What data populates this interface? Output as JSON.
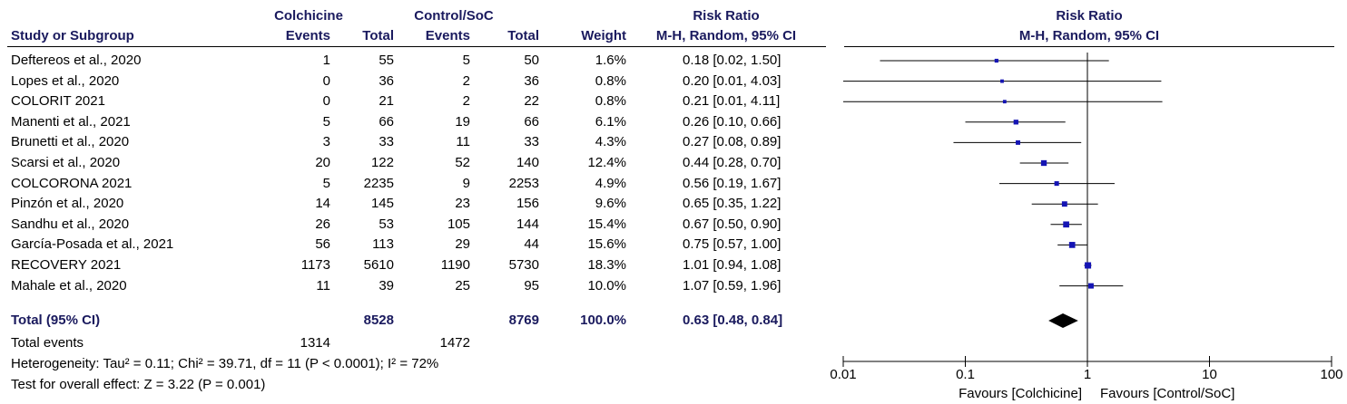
{
  "header": {
    "group1": "Colchicine",
    "group2": "Control/SoC",
    "rr_title": "Risk Ratio",
    "rr_method": "M-H, Random, 95% CI",
    "plot_title": "Risk Ratio",
    "plot_method": "M-H, Random, 95% CI",
    "col_study": "Study or Subgroup",
    "col_events1": "Events",
    "col_total1": "Total",
    "col_events2": "Events",
    "col_total2": "Total",
    "col_weight": "Weight"
  },
  "studies": [
    {
      "name": "Deftereos et al., 2020",
      "e1": "1",
      "t1": "55",
      "e2": "5",
      "t2": "50",
      "weight": "1.6%",
      "rr_text": "0.18 [0.02, 1.50]"
    },
    {
      "name": "Lopes et al., 2020",
      "e1": "0",
      "t1": "36",
      "e2": "2",
      "t2": "36",
      "weight": "0.8%",
      "rr_text": "0.20 [0.01, 4.03]"
    },
    {
      "name": "COLORIT 2021",
      "e1": "0",
      "t1": "21",
      "e2": "2",
      "t2": "22",
      "weight": "0.8%",
      "rr_text": "0.21 [0.01, 4.11]"
    },
    {
      "name": "Manenti et al., 2021",
      "e1": "5",
      "t1": "66",
      "e2": "19",
      "t2": "66",
      "weight": "6.1%",
      "rr_text": "0.26 [0.10, 0.66]"
    },
    {
      "name": "Brunetti et al., 2020",
      "e1": "3",
      "t1": "33",
      "e2": "11",
      "t2": "33",
      "weight": "4.3%",
      "rr_text": "0.27 [0.08, 0.89]"
    },
    {
      "name": "Scarsi et al., 2020",
      "e1": "20",
      "t1": "122",
      "e2": "52",
      "t2": "140",
      "weight": "12.4%",
      "rr_text": "0.44 [0.28, 0.70]"
    },
    {
      "name": "COLCORONA 2021",
      "e1": "5",
      "t1": "2235",
      "e2": "9",
      "t2": "2253",
      "weight": "4.9%",
      "rr_text": "0.56 [0.19, 1.67]"
    },
    {
      "name": "Pinzón et al., 2020",
      "e1": "14",
      "t1": "145",
      "e2": "23",
      "t2": "156",
      "weight": "9.6%",
      "rr_text": "0.65 [0.35, 1.22]"
    },
    {
      "name": "Sandhu et al., 2020",
      "e1": "26",
      "t1": "53",
      "e2": "105",
      "t2": "144",
      "weight": "15.4%",
      "rr_text": "0.67 [0.50, 0.90]"
    },
    {
      "name": "García-Posada et al., 2021",
      "e1": "56",
      "t1": "113",
      "e2": "29",
      "t2": "44",
      "weight": "15.6%",
      "rr_text": "0.75 [0.57, 1.00]"
    },
    {
      "name": "RECOVERY 2021",
      "e1": "1173",
      "t1": "5610",
      "e2": "1190",
      "t2": "5730",
      "weight": "18.3%",
      "rr_text": "1.01 [0.94, 1.08]"
    },
    {
      "name": "Mahale et al., 2020",
      "e1": "11",
      "t1": "39",
      "e2": "25",
      "t2": "95",
      "weight": "10.0%",
      "rr_text": "1.07 [0.59, 1.96]"
    }
  ],
  "total": {
    "label": "Total (95% CI)",
    "t1": "8528",
    "t2": "8769",
    "weight": "100.0%",
    "rr_text": "0.63 [0.48, 0.84]"
  },
  "footer": {
    "events_label": "Total events",
    "events1": "1314",
    "events2": "1472",
    "heterogeneity": "Heterogeneity: Tau² = 0.11; Chi² = 39.71, df = 11 (P < 0.0001); I² = 72%",
    "overall": "Test for overall effect: Z = 3.22 (P = 0.001)"
  },
  "colors": {
    "marker": "#1414b4",
    "diamond": "#000000",
    "axis": "#000000",
    "header": "#1a1a5e"
  },
  "chart_data": {
    "type": "scatter",
    "scale": "log",
    "xlim": [
      0.01,
      100
    ],
    "null_line": 1,
    "ticks": [
      {
        "value": 0.01,
        "label": "0.01"
      },
      {
        "value": 0.1,
        "label": "0.1"
      },
      {
        "value": 1,
        "label": "1"
      },
      {
        "value": 10,
        "label": "10"
      },
      {
        "value": 100,
        "label": "100"
      }
    ],
    "favours_left": "Favours [Colchicine]",
    "favours_right": "Favours [Control/SoC]",
    "points": [
      {
        "rr": 0.18,
        "lo": 0.02,
        "hi": 1.5,
        "weight": 1.6
      },
      {
        "rr": 0.2,
        "lo": 0.01,
        "hi": 4.03,
        "weight": 0.8
      },
      {
        "rr": 0.21,
        "lo": 0.01,
        "hi": 4.11,
        "weight": 0.8
      },
      {
        "rr": 0.26,
        "lo": 0.1,
        "hi": 0.66,
        "weight": 6.1
      },
      {
        "rr": 0.27,
        "lo": 0.08,
        "hi": 0.89,
        "weight": 4.3
      },
      {
        "rr": 0.44,
        "lo": 0.28,
        "hi": 0.7,
        "weight": 12.4
      },
      {
        "rr": 0.56,
        "lo": 0.19,
        "hi": 1.67,
        "weight": 4.9
      },
      {
        "rr": 0.65,
        "lo": 0.35,
        "hi": 1.22,
        "weight": 9.6
      },
      {
        "rr": 0.67,
        "lo": 0.5,
        "hi": 0.9,
        "weight": 15.4
      },
      {
        "rr": 0.75,
        "lo": 0.57,
        "hi": 1.0,
        "weight": 15.6
      },
      {
        "rr": 1.01,
        "lo": 0.94,
        "hi": 1.08,
        "weight": 18.3
      },
      {
        "rr": 1.07,
        "lo": 0.59,
        "hi": 1.96,
        "weight": 10.0
      }
    ],
    "pooled": {
      "rr": 0.63,
      "lo": 0.48,
      "hi": 0.84
    }
  }
}
